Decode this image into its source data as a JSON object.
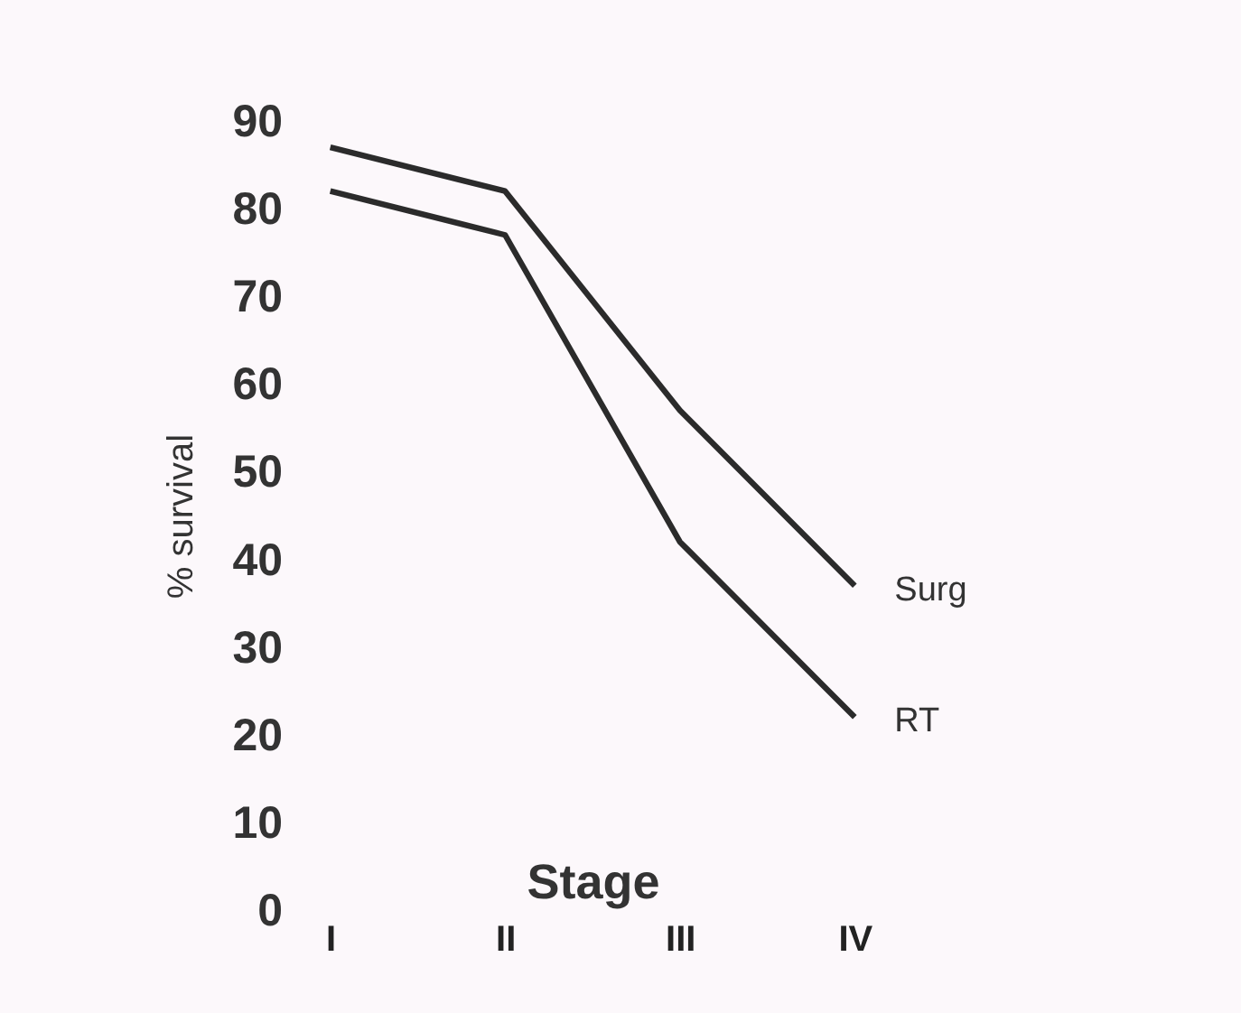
{
  "chart_data": {
    "type": "line",
    "xlabel": "Stage",
    "ylabel": "% survival",
    "categories": [
      "I",
      "II",
      "III",
      "IV"
    ],
    "series": [
      {
        "name": "Surg",
        "color": "#2b2b2b",
        "values": [
          87,
          82,
          57,
          37
        ]
      },
      {
        "name": "RT",
        "color": "#2b2b2b",
        "values": [
          82,
          77,
          42,
          22
        ]
      }
    ],
    "ylim": [
      0,
      90
    ],
    "yticks": [
      0,
      10,
      20,
      30,
      40,
      50,
      60,
      70,
      80,
      90
    ],
    "grid": false,
    "legend": false,
    "marker": "none",
    "line_style": "solid"
  }
}
